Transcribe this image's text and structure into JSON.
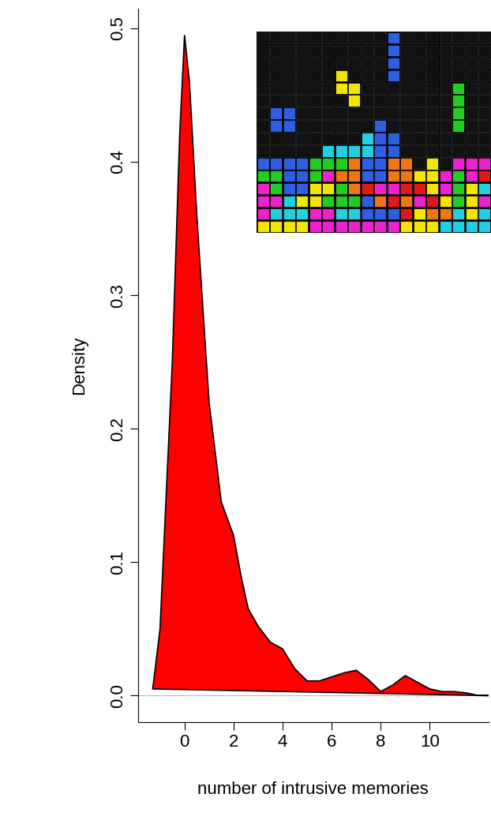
{
  "chart_data": {
    "type": "area",
    "x_label": "number of intrusive memories",
    "y_label": "Density",
    "x": [
      -1.3,
      -1.0,
      -0.5,
      -0.2,
      0.0,
      0.2,
      0.5,
      1.0,
      1.5,
      1.8,
      2.0,
      2.3,
      2.6,
      3.0,
      3.5,
      4.0,
      4.5,
      5.0,
      5.5,
      6.0,
      6.5,
      7.0,
      7.5,
      8.0,
      8.5,
      9.0,
      9.5,
      10.0,
      10.5,
      11.0,
      11.5,
      12.0,
      12.4
    ],
    "values": [
      0.005,
      0.05,
      0.25,
      0.42,
      0.495,
      0.46,
      0.36,
      0.22,
      0.145,
      0.13,
      0.12,
      0.09,
      0.065,
      0.052,
      0.04,
      0.035,
      0.02,
      0.011,
      0.011,
      0.014,
      0.017,
      0.019,
      0.012,
      0.003,
      0.008,
      0.015,
      0.01,
      0.005,
      0.003,
      0.003,
      0.002,
      0.0,
      0.0
    ],
    "color": "#ff0000",
    "xlim": [
      -1.9,
      12.4
    ],
    "xticks": [
      0,
      2,
      4,
      6,
      8,
      10
    ],
    "ylim": [
      -0.02,
      0.515
    ],
    "yticks": [
      0.0,
      0.1,
      0.2,
      0.3,
      0.4,
      0.5
    ],
    "grid": false
  }
}
